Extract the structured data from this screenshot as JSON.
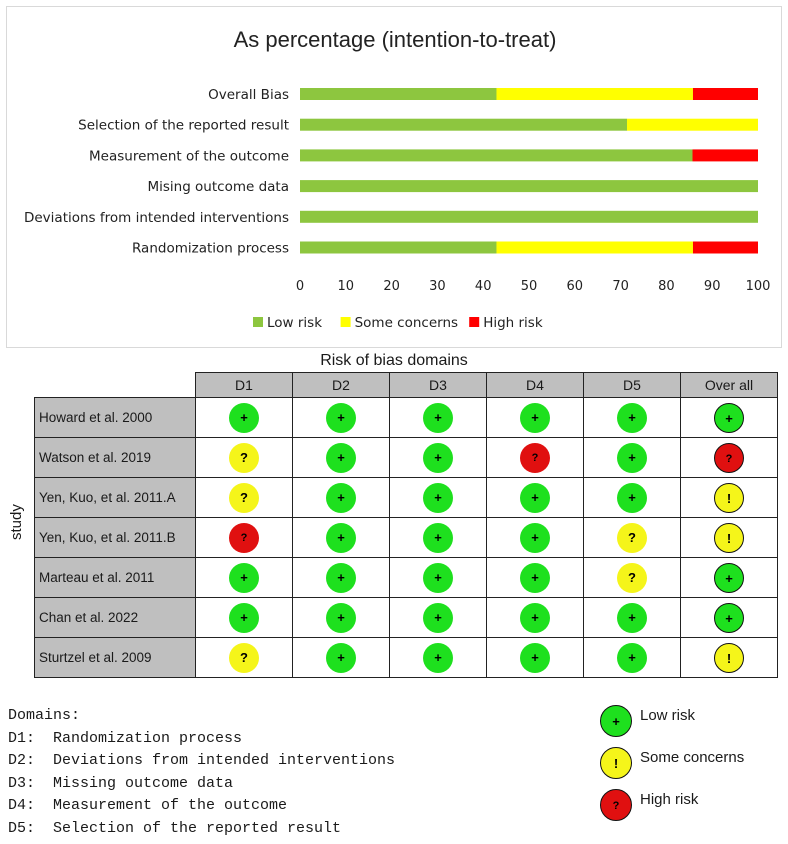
{
  "chart_data": {
    "type": "bar",
    "stacked": true,
    "orientation": "horizontal",
    "title": "As percentage (intention-to-treat)",
    "categories": [
      "Overall Bias",
      "Selection of the reported result",
      "Measurement of the outcome",
      "Mising outcome data",
      "Deviations from intended interventions",
      "Randomization process"
    ],
    "series": [
      {
        "name": "Low risk",
        "color": "#8dc63f",
        "values": [
          42.9,
          71.4,
          85.7,
          100,
          100,
          42.9
        ]
      },
      {
        "name": "Some concerns",
        "color": "#ffff00",
        "values": [
          42.9,
          28.6,
          0,
          0,
          0,
          42.9
        ]
      },
      {
        "name": "High risk",
        "color": "#ff0000",
        "values": [
          14.2,
          0,
          14.3,
          0,
          0,
          14.2
        ]
      }
    ],
    "xlim": [
      0,
      100
    ],
    "xticks": [
      "0",
      "10",
      "20",
      "30",
      "40",
      "50",
      "60",
      "70",
      "80",
      "90",
      "100"
    ],
    "legend_position": "bottom"
  },
  "rob_table": {
    "title": "Risk of bias domains",
    "axis_label": "study",
    "columns": [
      "D1",
      "D2",
      "D3",
      "D4",
      "D5",
      "Over all"
    ],
    "rows": [
      {
        "study": "Howard et al. 2000",
        "ratings": [
          "low",
          "low",
          "low",
          "low",
          "low",
          "low"
        ]
      },
      {
        "study": "Watson et al. 2019",
        "ratings": [
          "some_q",
          "low",
          "low",
          "high",
          "low",
          "high"
        ]
      },
      {
        "study": "Yen, Kuo, et al. 2011.A",
        "ratings": [
          "some_q",
          "low",
          "low",
          "low",
          "low",
          "some"
        ]
      },
      {
        "study": "Yen, Kuo, et al. 2011.B",
        "ratings": [
          "high",
          "low",
          "low",
          "low",
          "some_q",
          "some"
        ]
      },
      {
        "study": "Marteau et al. 2011",
        "ratings": [
          "low",
          "low",
          "low",
          "low",
          "some_q",
          "low"
        ]
      },
      {
        "study": "Chan et al. 2022",
        "ratings": [
          "low",
          "low",
          "low",
          "low",
          "low",
          "low"
        ]
      },
      {
        "study": "Sturtzel et al. 2009",
        "ratings": [
          "some_q",
          "low",
          "low",
          "low",
          "low",
          "some"
        ]
      }
    ],
    "symbols": {
      "low": "+",
      "some": "!",
      "some_q": "?",
      "high": "?"
    }
  },
  "domains": {
    "heading": "Domains:",
    "items": [
      "D1:  Randomization process",
      "D2:  Deviations from intended interventions",
      "D3:  Missing outcome data",
      "D4:  Measurement of the outcome",
      "D5:  Selection of the reported result"
    ]
  },
  "judgement_legend": [
    {
      "label": "Low risk",
      "symbol": "+",
      "level": "low"
    },
    {
      "label": "Some concerns",
      "symbol": "!",
      "level": "some"
    },
    {
      "label": "High risk",
      "symbol": "?",
      "level": "high"
    }
  ]
}
